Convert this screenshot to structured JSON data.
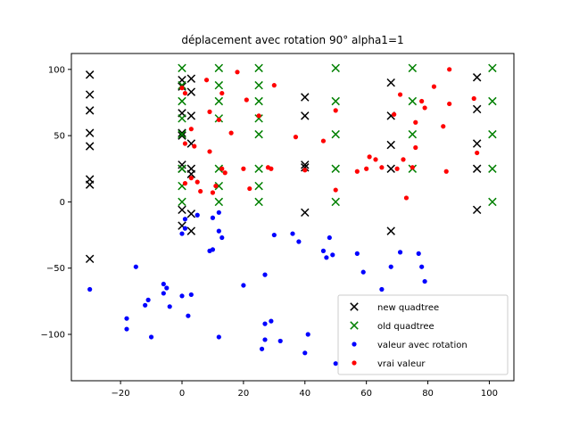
{
  "chart_data": {
    "type": "scatter",
    "title": "déplacement avec rotation 90° alpha1=1",
    "xlabel": "",
    "ylabel": "",
    "xlim": [
      -36,
      108
    ],
    "ylim": [
      -135,
      112
    ],
    "xticks": [
      -20,
      0,
      20,
      40,
      60,
      80,
      100
    ],
    "yticks": [
      -100,
      -50,
      0,
      50,
      100
    ],
    "grid": false,
    "legend_position": "lower-right",
    "series": [
      {
        "name": "new quadtree",
        "marker": "x",
        "color": "#000000",
        "points": [
          [
            -30,
            96
          ],
          [
            -30,
            81
          ],
          [
            -30,
            69
          ],
          [
            -30,
            52
          ],
          [
            -30,
            42
          ],
          [
            -30,
            17
          ],
          [
            -30,
            13
          ],
          [
            -30,
            -43
          ],
          [
            0,
            92
          ],
          [
            0,
            87
          ],
          [
            0,
            67
          ],
          [
            0,
            52
          ],
          [
            0,
            50
          ],
          [
            0,
            28
          ],
          [
            0,
            25
          ],
          [
            0,
            -6
          ],
          [
            0,
            -18
          ],
          [
            3,
            93
          ],
          [
            3,
            83
          ],
          [
            3,
            65
          ],
          [
            3,
            44
          ],
          [
            3,
            25
          ],
          [
            3,
            21
          ],
          [
            3,
            -9
          ],
          [
            3,
            -22
          ],
          [
            40,
            79
          ],
          [
            40,
            65
          ],
          [
            40,
            28
          ],
          [
            40,
            26
          ],
          [
            40,
            -8
          ],
          [
            68,
            90
          ],
          [
            68,
            65
          ],
          [
            68,
            43
          ],
          [
            68,
            25
          ],
          [
            68,
            -22
          ],
          [
            96,
            94
          ],
          [
            96,
            70
          ],
          [
            96,
            44
          ],
          [
            96,
            25
          ],
          [
            96,
            -6
          ]
        ]
      },
      {
        "name": "old quadtree",
        "marker": "x",
        "color": "#008000",
        "points": [
          [
            0,
            101
          ],
          [
            0,
            88
          ],
          [
            0,
            76
          ],
          [
            0,
            63
          ],
          [
            0,
            51
          ],
          [
            0,
            25
          ],
          [
            0,
            12
          ],
          [
            0,
            0
          ],
          [
            12,
            101
          ],
          [
            12,
            88
          ],
          [
            12,
            76
          ],
          [
            12,
            63
          ],
          [
            12,
            25
          ],
          [
            12,
            12
          ],
          [
            12,
            0
          ],
          [
            25,
            101
          ],
          [
            25,
            88
          ],
          [
            25,
            76
          ],
          [
            25,
            63
          ],
          [
            25,
            51
          ],
          [
            25,
            25
          ],
          [
            25,
            12
          ],
          [
            25,
            0
          ],
          [
            50,
            101
          ],
          [
            50,
            76
          ],
          [
            50,
            51
          ],
          [
            50,
            25
          ],
          [
            50,
            0
          ],
          [
            75,
            101
          ],
          [
            75,
            76
          ],
          [
            75,
            51
          ],
          [
            75,
            25
          ],
          [
            101,
            101
          ],
          [
            101,
            76
          ],
          [
            101,
            51
          ],
          [
            101,
            25
          ],
          [
            101,
            0
          ]
        ]
      },
      {
        "name": "valeur avec rotation",
        "marker": "o",
        "color": "#0000ff",
        "points": [
          [
            -30,
            -66
          ],
          [
            -18,
            -88
          ],
          [
            -18,
            -96
          ],
          [
            -15,
            -49
          ],
          [
            -12,
            -78
          ],
          [
            -11,
            -74
          ],
          [
            -10,
            -102
          ],
          [
            -6,
            -62
          ],
          [
            -5,
            -65
          ],
          [
            -6,
            -69
          ],
          [
            -4,
            -79
          ],
          [
            0,
            -24
          ],
          [
            0,
            -71
          ],
          [
            1,
            -20
          ],
          [
            1,
            -13
          ],
          [
            3,
            -70
          ],
          [
            2,
            -86
          ],
          [
            5,
            -10
          ],
          [
            9,
            -37
          ],
          [
            10,
            -36
          ],
          [
            10,
            -12
          ],
          [
            12,
            -8
          ],
          [
            12,
            -102
          ],
          [
            12,
            -22
          ],
          [
            13,
            -27
          ],
          [
            20,
            -63
          ],
          [
            26,
            -111
          ],
          [
            27,
            -104
          ],
          [
            27,
            -92
          ],
          [
            27,
            -55
          ],
          [
            29,
            -90
          ],
          [
            30,
            -25
          ],
          [
            32,
            -105
          ],
          [
            36,
            -24
          ],
          [
            38,
            -30
          ],
          [
            40,
            -114
          ],
          [
            41,
            -100
          ],
          [
            46,
            -37
          ],
          [
            47,
            -42
          ],
          [
            48,
            -27
          ],
          [
            49,
            -40
          ],
          [
            50,
            -122
          ],
          [
            57,
            -39
          ],
          [
            59,
            -53
          ],
          [
            65,
            -66
          ],
          [
            68,
            -49
          ],
          [
            71,
            -38
          ],
          [
            77,
            -39
          ],
          [
            78,
            -49
          ],
          [
            79,
            -60
          ]
        ]
      },
      {
        "name": "vrai valeur",
        "marker": "o",
        "color": "#ff0000",
        "points": [
          [
            0,
            86
          ],
          [
            1,
            82
          ],
          [
            1,
            44
          ],
          [
            1,
            14
          ],
          [
            3,
            55
          ],
          [
            3,
            18
          ],
          [
            4,
            42
          ],
          [
            5,
            15
          ],
          [
            6,
            8
          ],
          [
            8,
            92
          ],
          [
            9,
            68
          ],
          [
            9,
            38
          ],
          [
            10,
            7
          ],
          [
            11,
            12
          ],
          [
            12,
            62
          ],
          [
            13,
            82
          ],
          [
            13,
            25
          ],
          [
            14,
            22
          ],
          [
            16,
            52
          ],
          [
            18,
            98
          ],
          [
            20,
            25
          ],
          [
            21,
            77
          ],
          [
            22,
            10
          ],
          [
            25,
            65
          ],
          [
            28,
            26
          ],
          [
            29,
            25
          ],
          [
            30,
            88
          ],
          [
            37,
            49
          ],
          [
            40,
            24
          ],
          [
            46,
            46
          ],
          [
            50,
            69
          ],
          [
            50,
            9
          ],
          [
            57,
            23
          ],
          [
            60,
            25
          ],
          [
            61,
            34
          ],
          [
            63,
            32
          ],
          [
            65,
            26
          ],
          [
            69,
            66
          ],
          [
            70,
            25
          ],
          [
            71,
            81
          ],
          [
            72,
            32
          ],
          [
            73,
            3
          ],
          [
            75,
            26
          ],
          [
            76,
            41
          ],
          [
            76,
            60
          ],
          [
            78,
            76
          ],
          [
            79,
            71
          ],
          [
            82,
            87
          ],
          [
            85,
            57
          ],
          [
            86,
            23
          ],
          [
            87,
            100
          ],
          [
            87,
            74
          ],
          [
            95,
            78
          ],
          [
            96,
            37
          ]
        ]
      }
    ]
  }
}
